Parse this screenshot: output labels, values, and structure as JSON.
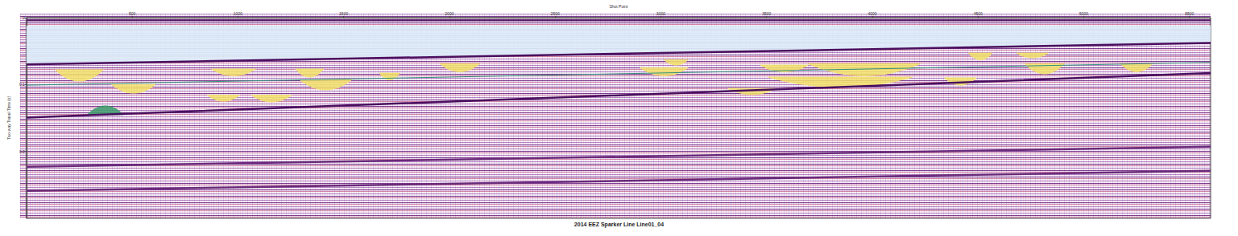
{
  "chart_data": {
    "type": "seismic_profile",
    "title": "2014 EEZ Sparker Line Line01_04",
    "x_label": "Shot Point",
    "y_label": "Two-way Travel Time (s)",
    "xlim": [
      0,
      5600
    ],
    "xticks": [
      500,
      1000,
      1500,
      2000,
      2500,
      3000,
      3500,
      4000,
      4500,
      5000,
      5500
    ],
    "ylim": [
      0,
      0.3
    ],
    "yticks": [
      0,
      0.1,
      0.2
    ],
    "water_column": {
      "color": "#dcecf8",
      "x": [
        0,
        5600
      ],
      "top": [
        0.012,
        0.012
      ],
      "bottom": [
        0.07,
        0.038
      ]
    },
    "horizons": [
      {
        "color": "#5a1a6a",
        "line_style": "solid",
        "x": [
          0,
          5600
        ],
        "y": [
          0.004,
          0.004
        ]
      },
      {
        "color": "#4a0f5e",
        "line_style": "solid",
        "x": [
          0,
          5600
        ],
        "y": [
          0.07,
          0.038
        ]
      },
      {
        "color": "#4a0f5e",
        "line_style": "solid",
        "x": [
          0,
          440,
          5600
        ],
        "y": [
          0.1495,
          0.144,
          0.083
        ]
      },
      {
        "color": "#2f8f7a",
        "line_style": "solid",
        "x": [
          0,
          5600
        ],
        "y": [
          0.101,
          0.067
        ]
      },
      {
        "color": "#6a2a7a",
        "line_style": "solid",
        "x": [
          0,
          5600
        ],
        "y": [
          0.223,
          0.193
        ]
      },
      {
        "color": "#6a2a7a",
        "line_style": "solid",
        "x": [
          0,
          5600
        ],
        "y": [
          0.259,
          0.229
        ]
      }
    ],
    "channel_fills": {
      "color": "#f2e26a",
      "items": [
        {
          "x": [
            136,
            364
          ],
          "y": [
            0.078,
            0.095
          ]
        },
        {
          "x": [
            402,
            610
          ],
          "y": [
            0.1,
            0.113
          ]
        },
        {
          "x": [
            875,
            1083
          ],
          "y": [
            0.077,
            0.087
          ]
        },
        {
          "x": [
            1273,
            1405
          ],
          "y": [
            0.077,
            0.089
          ]
        },
        {
          "x": [
            1292,
            1538
          ],
          "y": [
            0.093,
            0.108
          ]
        },
        {
          "x": [
            856,
            1008
          ],
          "y": [
            0.116,
            0.125
          ]
        },
        {
          "x": [
            1064,
            1254
          ],
          "y": [
            0.116,
            0.126
          ]
        },
        {
          "x": [
            1670,
            1765
          ],
          "y": [
            0.083,
            0.093
          ]
        },
        {
          "x": [
            1955,
            2144
          ],
          "y": [
            0.069,
            0.081
          ]
        },
        {
          "x": [
            2902,
            3129
          ],
          "y": [
            0.075,
            0.087
          ]
        },
        {
          "x": [
            3015,
            3129
          ],
          "y": [
            0.063,
            0.071
          ]
        },
        {
          "x": [
            3470,
            3697
          ],
          "y": [
            0.071,
            0.081
          ]
        },
        {
          "x": [
            3697,
            4227
          ],
          "y": [
            0.069,
            0.087
          ]
        },
        {
          "x": [
            3508,
            4190
          ],
          "y": [
            0.089,
            0.104
          ]
        },
        {
          "x": [
            3318,
            3545
          ],
          "y": [
            0.106,
            0.115
          ]
        },
        {
          "x": [
            4341,
            4493
          ],
          "y": [
            0.09,
            0.101
          ]
        },
        {
          "x": [
            4455,
            4568
          ],
          "y": [
            0.053,
            0.063
          ]
        },
        {
          "x": [
            4720,
            4909
          ],
          "y": [
            0.069,
            0.084
          ]
        },
        {
          "x": [
            5174,
            5326
          ],
          "y": [
            0.069,
            0.081
          ]
        },
        {
          "x": [
            4682,
            4833
          ],
          "y": [
            0.053,
            0.06
          ]
        }
      ]
    },
    "mounds": {
      "color": "#3a9a6a",
      "items": [
        {
          "x": [
            288,
            458
          ],
          "y": [
            0.132,
            0.145
          ]
        }
      ]
    }
  }
}
